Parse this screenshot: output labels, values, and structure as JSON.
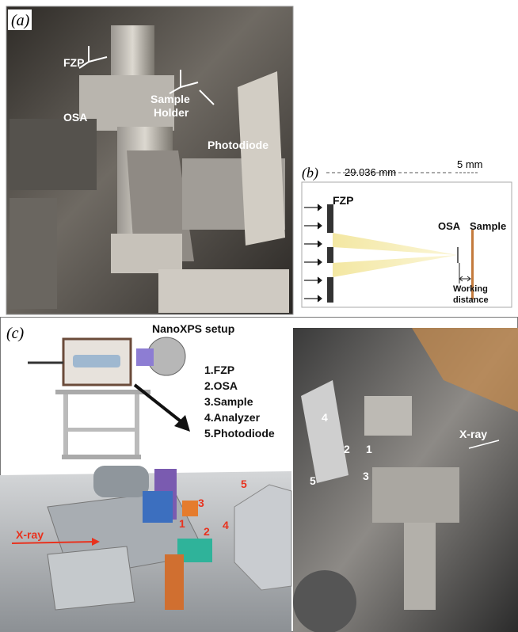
{
  "panel_a": {
    "label": "(a)",
    "labels": {
      "fzp": "FZP",
      "osa": "OSA",
      "sample_holder": [
        "Sample",
        "Holder"
      ],
      "photodiode": "Photodiode"
    }
  },
  "panel_b": {
    "label": "(b)",
    "focal_length": "29.036 mm",
    "working_gap": "5 mm",
    "fzp": "FZP",
    "osa": "OSA",
    "sample": "Sample",
    "working_distance": [
      "Working",
      "distance"
    ]
  },
  "panel_c": {
    "label": "(c)",
    "title": "NanoXPS setup",
    "legend": [
      "1.FZP",
      "2.OSA",
      "3.Sample",
      "4.Analyzer",
      "5.Photodiode"
    ],
    "render_labels": {
      "xray": "X-ray",
      "numbers": [
        "1",
        "2",
        "3",
        "4",
        "5"
      ]
    },
    "photo_labels": {
      "xray": "X-ray",
      "numbers": [
        "1",
        "2",
        "3",
        "4",
        "5"
      ]
    }
  }
}
